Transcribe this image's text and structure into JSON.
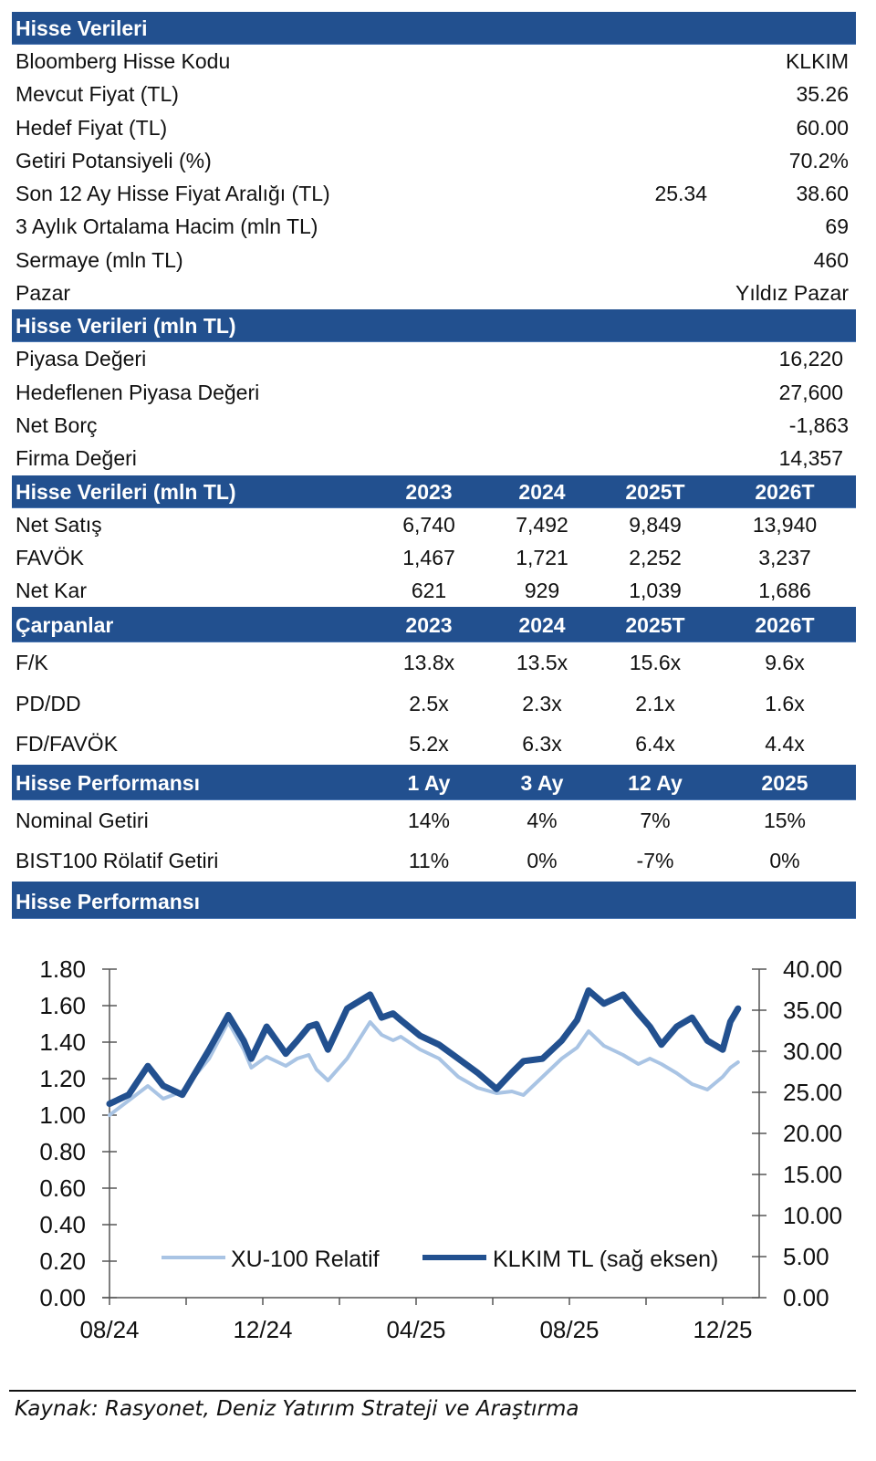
{
  "stock_data": {
    "header": "Hisse Verileri",
    "rows": [
      {
        "label": "Bloomberg Hisse Kodu",
        "value": "KLKIM"
      },
      {
        "label": "Mevcut Fiyat (TL)",
        "value": "35.26"
      },
      {
        "label": "Hedef Fiyat (TL)",
        "value": "60.00"
      },
      {
        "label": "Getiri Potansiyeli (%)",
        "value": "70.2%"
      },
      {
        "label": "Son 12 Ay Hisse Fiyat Aralığı (TL)",
        "low": "25.34",
        "value": "38.60"
      },
      {
        "label": "3 Aylık Ortalama Hacim (mln TL)",
        "value": "69"
      },
      {
        "label": "Sermaye (mln TL)",
        "value": "460"
      },
      {
        "label": "Pazar",
        "value": "Yıldız Pazar"
      }
    ]
  },
  "valuation": {
    "header": "Hisse Verileri (mln TL)",
    "rows": [
      {
        "label": "Piyasa Değeri",
        "value": "16,220"
      },
      {
        "label": "Hedeflenen Piyasa Değeri",
        "value": "27,600"
      },
      {
        "label": "Net Borç",
        "value": "-1,863"
      },
      {
        "label": "Firma Değeri",
        "value": "14,357"
      }
    ]
  },
  "financials": {
    "header": "Hisse Verileri (mln TL)",
    "columns": [
      "2023",
      "2024",
      "2025T",
      "2026T"
    ],
    "rows": [
      {
        "label": "Net Satış",
        "values": [
          "6,740",
          "7,492",
          "9,849",
          "13,940"
        ]
      },
      {
        "label": "FAVÖK",
        "values": [
          "1,467",
          "1,721",
          "2,252",
          "3,237"
        ]
      },
      {
        "label": "Net Kar",
        "values": [
          "621",
          "929",
          "1,039",
          "1,686"
        ]
      }
    ]
  },
  "multiples": {
    "header": "Çarpanlar",
    "columns": [
      "2023",
      "2024",
      "2025T",
      "2026T"
    ],
    "rows": [
      {
        "label": "F/K",
        "values": [
          "13.8x",
          "13.5x",
          "15.6x",
          "9.6x"
        ]
      },
      {
        "label": "PD/DD",
        "values": [
          "2.5x",
          "2.3x",
          "2.1x",
          "1.6x"
        ]
      },
      {
        "label": "FD/FAVÖK",
        "values": [
          "5.2x",
          "6.3x",
          "6.4x",
          "4.4x"
        ]
      }
    ]
  },
  "performance": {
    "header": "Hisse Performansı",
    "columns": [
      "1 Ay",
      "3 Ay",
      "12 Ay",
      "2025"
    ],
    "rows": [
      {
        "label": "Nominal Getiri",
        "values": [
          "14%",
          "4%",
          "7%",
          "15%"
        ]
      },
      {
        "label": "BIST100 Rölatif Getiri",
        "values": [
          "11%",
          "0%",
          "-7%",
          "0%"
        ]
      }
    ]
  },
  "chart_section": {
    "header": "Hisse Performansı"
  },
  "chart_data": {
    "type": "line",
    "title": "",
    "xlabel": "",
    "ylabel_left": "",
    "ylabel_right": "",
    "x_range": [
      "08/24",
      "01/26"
    ],
    "x_tick_labels": [
      "08/24",
      "12/24",
      "04/25",
      "08/25",
      "12/25"
    ],
    "y_left": {
      "min": 0,
      "max": 1.8,
      "ticks": [
        "0.00",
        "0.20",
        "0.40",
        "0.60",
        "0.80",
        "1.00",
        "1.20",
        "1.40",
        "1.60",
        "1.80"
      ]
    },
    "y_right": {
      "min": 0,
      "max": 40,
      "ticks": [
        "0.00",
        "5.00",
        "10.00",
        "15.00",
        "20.00",
        "25.00",
        "30.00",
        "35.00",
        "40.00"
      ]
    },
    "grid": false,
    "legend_placement": "bottom-center",
    "x_months": [
      0,
      0.5,
      1.0,
      1.4,
      1.9,
      2.6,
      3.1,
      3.5,
      3.7,
      4.1,
      4.6,
      4.9,
      5.2,
      5.4,
      5.7,
      6.2,
      6.8,
      7.1,
      7.4,
      7.6,
      8.1,
      8.6,
      9.1,
      9.6,
      10.1,
      10.5,
      10.8,
      11.3,
      11.8,
      12.2,
      12.5,
      12.9,
      13.4,
      13.8,
      14.1,
      14.4,
      14.8,
      15.2,
      15.6,
      16.0,
      16.2,
      16.4
    ],
    "series": [
      {
        "name": "XU-100 Relatif",
        "axis": "left",
        "color": "#a9c4e4",
        "values": [
          1.0,
          1.08,
          1.16,
          1.09,
          1.13,
          1.31,
          1.51,
          1.36,
          1.26,
          1.32,
          1.27,
          1.31,
          1.33,
          1.25,
          1.19,
          1.31,
          1.51,
          1.44,
          1.41,
          1.43,
          1.36,
          1.31,
          1.21,
          1.15,
          1.12,
          1.13,
          1.11,
          1.21,
          1.31,
          1.37,
          1.46,
          1.38,
          1.33,
          1.28,
          1.31,
          1.28,
          1.23,
          1.17,
          1.14,
          1.21,
          1.26,
          1.29
        ]
      },
      {
        "name": "KLKIM TL (sağ eksen)",
        "axis": "right",
        "color": "#22508f",
        "values": [
          23.6,
          24.7,
          28.2,
          25.8,
          24.7,
          30.2,
          34.4,
          31.3,
          29.1,
          33.0,
          29.7,
          31.3,
          33.0,
          33.3,
          30.2,
          35.2,
          36.9,
          34.1,
          34.6,
          33.8,
          31.9,
          30.8,
          29.1,
          27.4,
          25.4,
          27.4,
          28.8,
          29.1,
          31.3,
          33.8,
          37.4,
          35.8,
          36.9,
          34.6,
          33.0,
          30.8,
          33.0,
          34.1,
          31.3,
          30.2,
          33.6,
          35.2
        ]
      }
    ]
  },
  "source": "Kaynak: Rasyonet, Deniz Yatırım Strateji ve Araştırma"
}
